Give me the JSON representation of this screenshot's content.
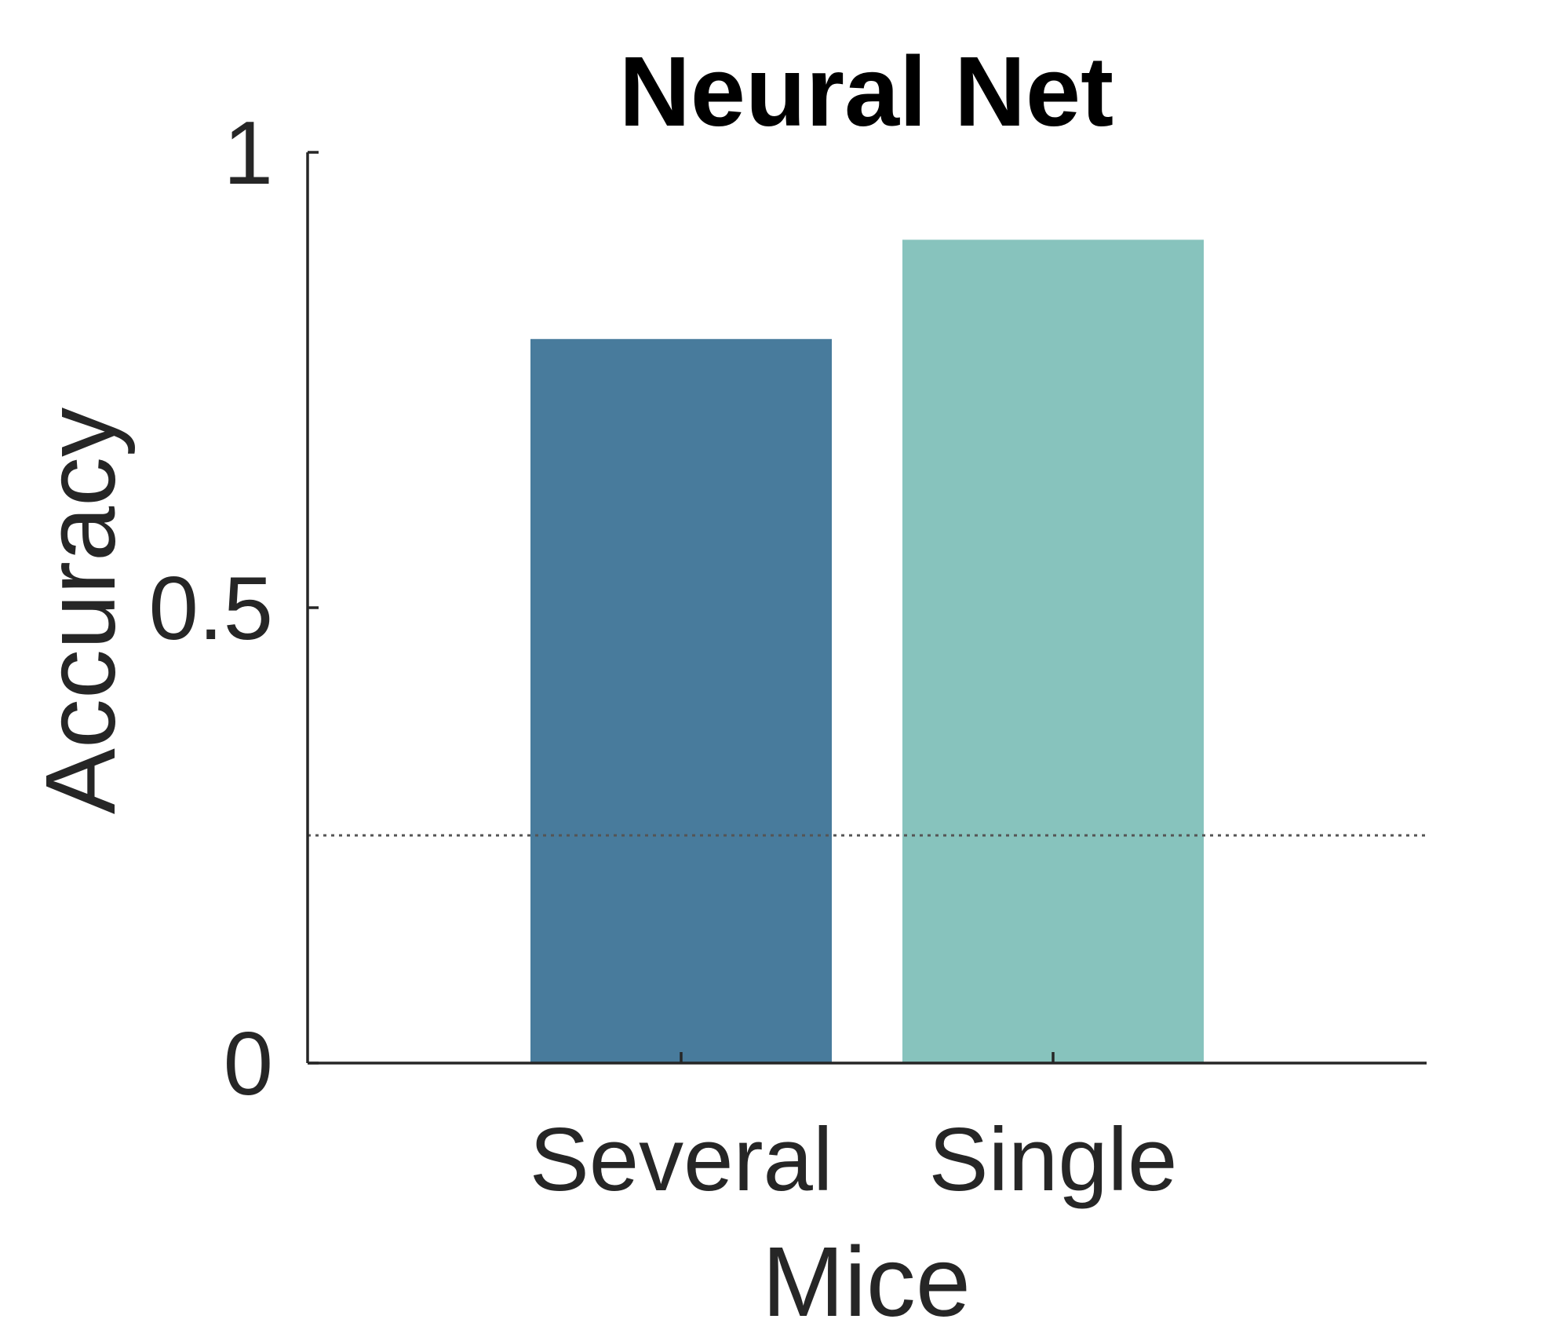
{
  "chart_data": {
    "type": "bar",
    "title": "Neural Net",
    "xlabel": "Mice",
    "ylabel": "Accuracy",
    "categories": [
      "Several",
      "Single"
    ],
    "values": [
      0.795,
      0.904
    ],
    "colors": [
      "#487B9C",
      "#87C3BD"
    ],
    "ylim": [
      0,
      1
    ],
    "yticks": [
      {
        "value": 0,
        "label": "0"
      },
      {
        "value": 0.5,
        "label": "0.5"
      },
      {
        "value": 1,
        "label": "1"
      }
    ],
    "reference_line": {
      "value": 0.25,
      "style": "dotted",
      "color": "#555555"
    },
    "grid": false,
    "legend": "none"
  }
}
